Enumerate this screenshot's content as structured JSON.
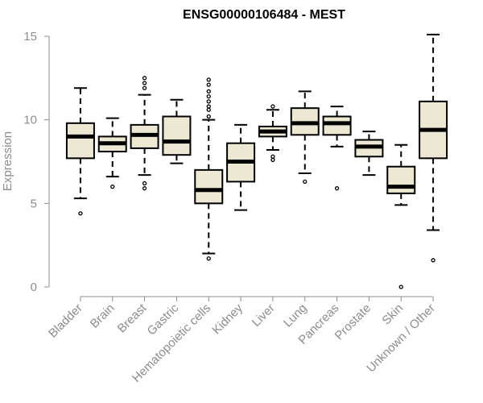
{
  "chart_data": {
    "type": "boxplot",
    "title": "ENSG00000106484 - MEST",
    "xlabel": "",
    "ylabel": "Expression",
    "ylim": [
      0,
      15
    ],
    "yticks": [
      0,
      5,
      10,
      15
    ],
    "categories": [
      "Bladder",
      "Brain",
      "Breast",
      "Gastric",
      "Hematopoietic cells",
      "Kidney",
      "Liver",
      "Lung",
      "Pancreas",
      "Prostate",
      "Skin",
      "Unknown / Other"
    ],
    "boxes": [
      {
        "name": "Bladder",
        "whisker_low": 5.3,
        "q1": 7.7,
        "median": 9.0,
        "q3": 9.8,
        "whisker_high": 11.9,
        "outliers": [
          4.4
        ]
      },
      {
        "name": "Brain",
        "whisker_low": 6.6,
        "q1": 8.1,
        "median": 8.6,
        "q3": 9.0,
        "whisker_high": 10.1,
        "outliers": [
          6.0
        ]
      },
      {
        "name": "Breast",
        "whisker_low": 6.7,
        "q1": 8.3,
        "median": 9.1,
        "q3": 9.7,
        "whisker_high": 11.5,
        "outliers": [
          5.9,
          6.2,
          11.9,
          12.2,
          12.5
        ]
      },
      {
        "name": "Gastric",
        "whisker_low": 7.4,
        "q1": 7.9,
        "median": 8.7,
        "q3": 10.2,
        "whisker_high": 11.2,
        "outliers": []
      },
      {
        "name": "Hematopoietic cells",
        "whisker_low": 2.0,
        "q1": 5.0,
        "median": 5.8,
        "q3": 7.0,
        "whisker_high": 10.0,
        "outliers": [
          1.7,
          10.2,
          10.6,
          10.8,
          11.1,
          11.4,
          11.7,
          12.1,
          12.4
        ]
      },
      {
        "name": "Kidney",
        "whisker_low": 4.6,
        "q1": 6.3,
        "median": 7.5,
        "q3": 8.6,
        "whisker_high": 9.7,
        "outliers": []
      },
      {
        "name": "Liver",
        "whisker_low": 8.2,
        "q1": 9.0,
        "median": 9.3,
        "q3": 9.6,
        "whisker_high": 10.6,
        "outliers": [
          7.6,
          7.8,
          10.8
        ]
      },
      {
        "name": "Lung",
        "whisker_low": 6.8,
        "q1": 9.1,
        "median": 9.8,
        "q3": 10.7,
        "whisker_high": 11.7,
        "outliers": [
          6.3
        ]
      },
      {
        "name": "Pancreas",
        "whisker_low": 8.4,
        "q1": 9.1,
        "median": 9.8,
        "q3": 10.2,
        "whisker_high": 10.8,
        "outliers": [
          5.9
        ]
      },
      {
        "name": "Prostate",
        "whisker_low": 6.7,
        "q1": 7.8,
        "median": 8.4,
        "q3": 8.8,
        "whisker_high": 9.3,
        "outliers": []
      },
      {
        "name": "Skin",
        "whisker_low": 4.9,
        "q1": 5.6,
        "median": 6.0,
        "q3": 7.2,
        "whisker_high": 8.5,
        "outliers": [
          0.0
        ]
      },
      {
        "name": "Unknown / Other",
        "whisker_low": 3.4,
        "q1": 7.7,
        "median": 9.4,
        "q3": 11.1,
        "whisker_high": 15.1,
        "outliers": [
          1.6
        ]
      }
    ],
    "colors": {
      "box_fill": "#ede8d3",
      "box_stroke": "#000000",
      "axis": "#8c8c8c",
      "title": "#000000"
    }
  }
}
